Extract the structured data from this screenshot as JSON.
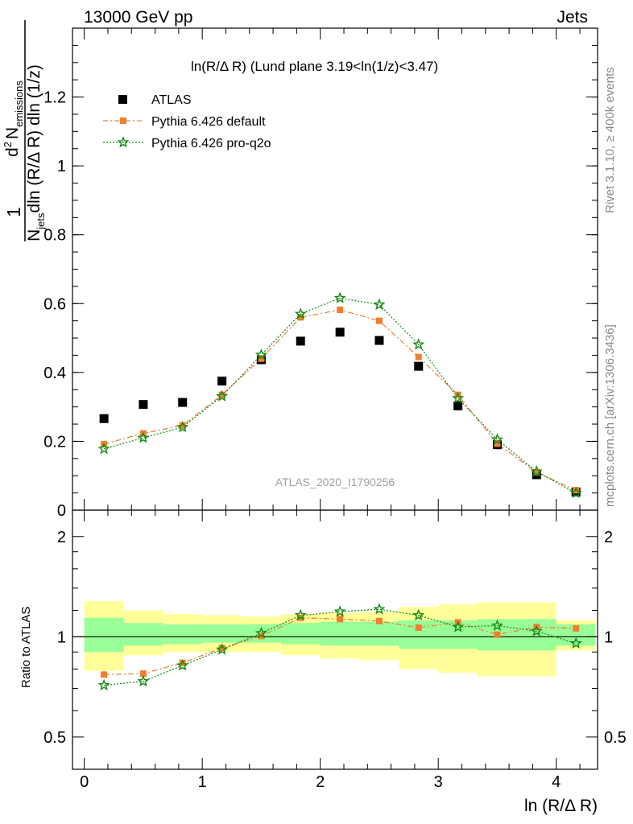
{
  "header": {
    "left": "13000 GeV pp",
    "right": "Jets"
  },
  "side_labels": {
    "rivet": "Rivet 3.1.10, ≥ 400k events",
    "mcplots": "mcplots.cern.ch [arXiv:1306.3436]"
  },
  "colors": {
    "atlas": "#000000",
    "default": "#f07f30",
    "proq2o": "#118a11",
    "band_inner": "#99ff99",
    "band_outer": "#ffff99"
  },
  "chart_data": [
    {
      "type": "scatter",
      "title": "ln(R/Δ R) (Lund plane 3.19<ln(1/z)<3.47)",
      "ylabel": "1/N_jets d²N_emissions / dln(R/ΔR) dln(1/z)",
      "ylabel_parts": {
        "one": "1",
        "d2": "d",
        "sup2": "2",
        "n": "N",
        "emissions": "emissions",
        "njets_n": "N",
        "jets": "jets",
        "den": "dln (R/Δ R) dln (1/z)"
      },
      "ylim": [
        0,
        1.4
      ],
      "yticks": [
        0,
        0.2,
        0.4,
        0.6,
        0.8,
        1,
        1.2
      ],
      "ytick_labels": [
        "0",
        "0.2",
        "0.4",
        "0.6",
        "0.8",
        "1",
        "1.2"
      ],
      "xlim": [
        -0.1,
        4.35
      ],
      "watermark": "ATLAS_2020_I1790256",
      "legend": [
        "ATLAS",
        "Pythia 6.426 default",
        "Pythia 6.426 pro-q2o"
      ],
      "bins": [
        [
          0,
          0.333
        ],
        [
          0.333,
          0.667
        ],
        [
          0.667,
          1.0
        ],
        [
          1.0,
          1.333
        ],
        [
          1.333,
          1.667
        ],
        [
          1.667,
          2.0
        ],
        [
          2.0,
          2.333
        ],
        [
          2.333,
          2.667
        ],
        [
          2.667,
          3.0
        ],
        [
          3.0,
          3.333
        ],
        [
          3.333,
          3.667
        ],
        [
          3.667,
          4.0
        ],
        [
          4.0,
          4.333
        ]
      ],
      "x": [
        0.167,
        0.5,
        0.833,
        1.167,
        1.5,
        1.833,
        2.167,
        2.5,
        2.833,
        3.167,
        3.5,
        3.833,
        4.167
      ],
      "series": [
        {
          "name": "ATLAS",
          "values": [
            0.266,
            0.307,
            0.313,
            0.375,
            0.437,
            0.491,
            0.517,
            0.493,
            0.418,
            0.303,
            0.19,
            0.103,
            0.053
          ]
        },
        {
          "name": "Pythia 6.426 default",
          "values": [
            0.192,
            0.223,
            0.246,
            0.335,
            0.44,
            0.56,
            0.582,
            0.55,
            0.445,
            0.335,
            0.193,
            0.11,
            0.058
          ]
        },
        {
          "name": "Pythia 6.426 pro-q2o",
          "values": [
            0.178,
            0.21,
            0.241,
            0.331,
            0.451,
            0.57,
            0.616,
            0.597,
            0.481,
            0.325,
            0.205,
            0.112,
            0.05
          ]
        }
      ]
    },
    {
      "type": "line",
      "ylabel": "Ratio to ATLAS",
      "xlabel": "ln (R/Δ R)",
      "ylim": [
        0.4,
        2.4
      ],
      "yscale": "log",
      "yticks": [
        0.5,
        1,
        2
      ],
      "ytick_labels": [
        "0.5",
        "1",
        "2"
      ],
      "xlim": [
        -0.1,
        4.35
      ],
      "xticks": [
        0,
        1,
        2,
        3,
        4
      ],
      "xtick_labels": [
        "0",
        "1",
        "2",
        "3",
        "4"
      ],
      "x": [
        0.167,
        0.5,
        0.833,
        1.167,
        1.5,
        1.833,
        2.167,
        2.5,
        2.833,
        3.167,
        3.5,
        3.833,
        4.167
      ],
      "band_inner": [
        [
          0.9,
          1.14
        ],
        [
          0.94,
          1.1
        ],
        [
          0.95,
          1.09
        ],
        [
          0.96,
          1.09
        ],
        [
          0.96,
          1.09
        ],
        [
          0.95,
          1.1
        ],
        [
          0.94,
          1.11
        ],
        [
          0.94,
          1.11
        ],
        [
          0.92,
          1.12
        ],
        [
          0.92,
          1.12
        ],
        [
          0.91,
          1.13
        ],
        [
          0.91,
          1.13
        ],
        [
          0.94,
          1.09
        ]
      ],
      "band_outer": [
        [
          0.79,
          1.28
        ],
        [
          0.88,
          1.2
        ],
        [
          0.9,
          1.17
        ],
        [
          0.9,
          1.16
        ],
        [
          0.9,
          1.15
        ],
        [
          0.88,
          1.17
        ],
        [
          0.86,
          1.18
        ],
        [
          0.85,
          1.19
        ],
        [
          0.8,
          1.23
        ],
        [
          0.78,
          1.25
        ],
        [
          0.76,
          1.27
        ],
        [
          0.76,
          1.27
        ],
        [
          0.91,
          1.12
        ]
      ],
      "series": [
        {
          "name": "Pythia 6.426 default",
          "values": [
            0.77,
            0.775,
            0.835,
            0.925,
            1.005,
            1.14,
            1.13,
            1.115,
            1.065,
            1.105,
            1.015,
            1.07,
            1.06
          ]
        },
        {
          "name": "Pythia 6.426 pro-q2o",
          "values": [
            0.715,
            0.735,
            0.82,
            0.915,
            1.025,
            1.16,
            1.19,
            1.21,
            1.16,
            1.07,
            1.08,
            1.04,
            0.955
          ]
        }
      ]
    }
  ]
}
